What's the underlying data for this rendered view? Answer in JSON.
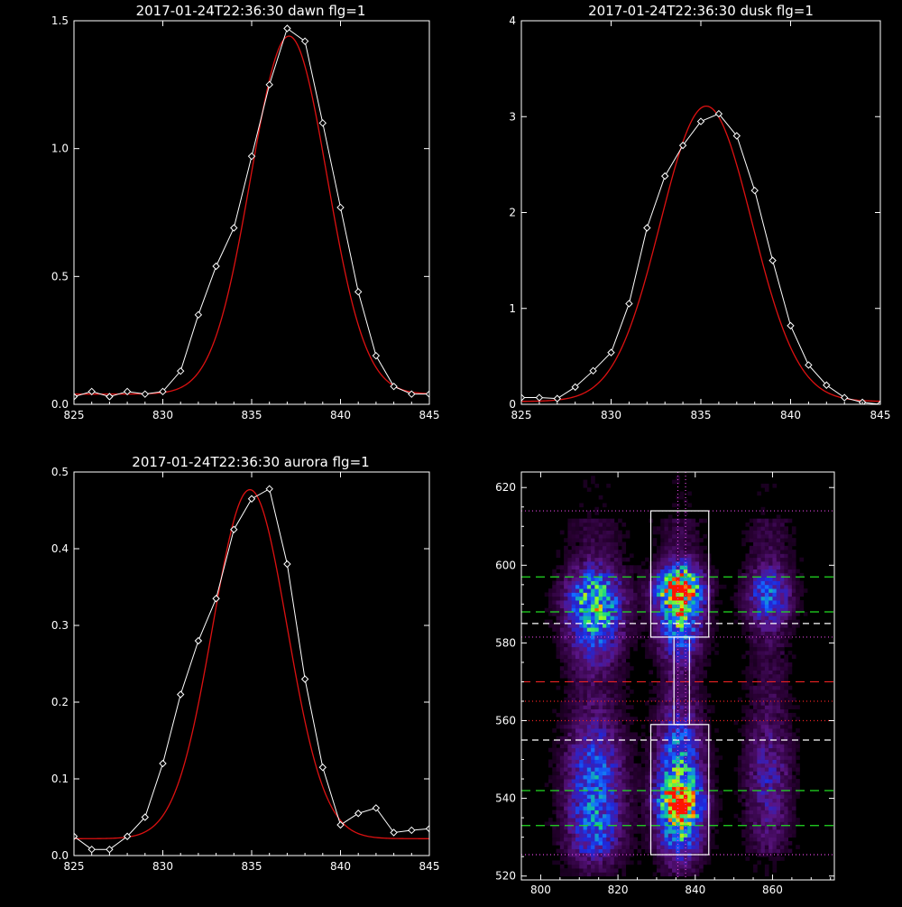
{
  "colors": {
    "background": "#000000",
    "axes": "#ffffff",
    "data_line": "#ffffff",
    "fit_line": "#dd1111",
    "guide_green": "#22dd22",
    "guide_white": "#ffffff",
    "guide_red": "#ee2222",
    "guide_magenta": "#dd44dd"
  },
  "chart_data": [
    {
      "type": "line",
      "title": "2017-01-24T22:36:30 dawn flg=1",
      "xlim": [
        825,
        845
      ],
      "ylim": [
        0,
        1.5
      ],
      "xticks": [
        825,
        830,
        835,
        840,
        845
      ],
      "yticks": [
        0.0,
        0.5,
        1.0,
        1.5
      ],
      "ytick_labels": [
        "0.0",
        "0.5",
        "1.0",
        "1.5"
      ],
      "series": [
        {
          "style": "white-line-diamonds",
          "x": [
            825,
            826,
            827,
            828,
            829,
            830,
            831,
            832,
            833,
            834,
            835,
            836,
            837,
            838,
            839,
            840,
            841,
            842,
            843,
            844,
            845
          ],
          "y": [
            0.03,
            0.05,
            0.03,
            0.05,
            0.04,
            0.05,
            0.13,
            0.35,
            0.54,
            0.69,
            0.97,
            1.25,
            1.47,
            1.42,
            1.1,
            0.77,
            0.44,
            0.19,
            0.07,
            0.04,
            0.04
          ]
        },
        {
          "style": "red-gaussian-fit",
          "gaussian": {
            "amplitude": 1.4,
            "center": 837.1,
            "sigma": 2.15,
            "offset": 0.04
          }
        }
      ]
    },
    {
      "type": "line",
      "title": "2017-01-24T22:36:30 dusk flg=1",
      "xlim": [
        825,
        845
      ],
      "ylim": [
        0,
        4
      ],
      "xticks": [
        825,
        830,
        835,
        840,
        845
      ],
      "yticks": [
        0,
        1,
        2,
        3,
        4
      ],
      "ytick_labels": [
        "0",
        "1",
        "2",
        "3",
        "4"
      ],
      "series": [
        {
          "style": "white-line-diamonds",
          "x": [
            825,
            826,
            827,
            828,
            829,
            830,
            831,
            832,
            833,
            834,
            835,
            836,
            837,
            838,
            839,
            840,
            841,
            842,
            843,
            844,
            845
          ],
          "y": [
            0.07,
            0.07,
            0.06,
            0.18,
            0.35,
            0.54,
            1.05,
            1.84,
            2.38,
            2.7,
            2.95,
            3.03,
            2.8,
            2.23,
            1.5,
            0.82,
            0.41,
            0.2,
            0.07,
            0.02,
            0.0
          ]
        },
        {
          "style": "red-gaussian-fit",
          "gaussian": {
            "amplitude": 3.08,
            "center": 835.3,
            "sigma": 2.55,
            "offset": 0.03
          }
        }
      ]
    },
    {
      "type": "line",
      "title": "2017-01-24T22:36:30 aurora flg=1",
      "xlim": [
        825,
        845
      ],
      "ylim": [
        0,
        0.5
      ],
      "xticks": [
        825,
        830,
        835,
        840,
        845
      ],
      "yticks": [
        0.0,
        0.1,
        0.2,
        0.3,
        0.4,
        0.5
      ],
      "ytick_labels": [
        "0.0",
        "0.1",
        "0.2",
        "0.3",
        "0.4",
        "0.5"
      ],
      "series": [
        {
          "style": "white-line-diamonds",
          "x": [
            825,
            826,
            827,
            828,
            829,
            830,
            831,
            832,
            833,
            834,
            835,
            836,
            837,
            838,
            839,
            840,
            841,
            842,
            843,
            844,
            845
          ],
          "y": [
            0.025,
            0.008,
            0.008,
            0.025,
            0.05,
            0.12,
            0.21,
            0.28,
            0.335,
            0.425,
            0.465,
            0.478,
            0.38,
            0.23,
            0.115,
            0.04,
            0.055,
            0.062,
            0.03,
            0.033,
            0.035
          ]
        },
        {
          "style": "red-gaussian-fit",
          "gaussian": {
            "amplitude": 0.455,
            "center": 834.9,
            "sigma": 2.1,
            "offset": 0.022
          }
        }
      ]
    },
    {
      "type": "heatmap",
      "title": "",
      "xlim": [
        795,
        876
      ],
      "ylim": [
        519,
        624
      ],
      "xticks": [
        800,
        820,
        840,
        860
      ],
      "yticks": [
        520,
        540,
        560,
        580,
        600,
        620
      ],
      "colormap": "black-purple-blue-green-yellow-red",
      "columns": [
        {
          "center": 814,
          "width": 5,
          "blobs": [
            {
              "y": 592,
              "sy": 5,
              "peak": 0.55
            },
            {
              "y": 583,
              "sy": 6,
              "peak": 0.35
            },
            {
              "y": 545,
              "sy": 10,
              "peak": 0.4
            },
            {
              "y": 530,
              "sy": 6,
              "peak": 0.25
            }
          ]
        },
        {
          "center": 836,
          "width": 4,
          "blobs": [
            {
              "y": 594,
              "sy": 4,
              "peak": 1.0
            },
            {
              "y": 585,
              "sy": 6,
              "peak": 0.5
            },
            {
              "y": 548,
              "sy": 10,
              "peak": 0.5
            },
            {
              "y": 539,
              "sy": 4,
              "peak": 0.7
            },
            {
              "y": 530,
              "sy": 6,
              "peak": 0.35
            }
          ]
        },
        {
          "center": 859,
          "width": 4,
          "blobs": [
            {
              "y": 592,
              "sy": 5,
              "peak": 0.4
            },
            {
              "y": 545,
              "sy": 10,
              "peak": 0.2
            }
          ]
        }
      ],
      "rectangles": [
        {
          "x": [
            828.5,
            843.5
          ],
          "y": [
            581.5,
            614
          ]
        },
        {
          "x": [
            828.5,
            843.5
          ],
          "y": [
            525.5,
            559
          ]
        },
        {
          "x": [
            834.5,
            838.5
          ],
          "y": [
            559,
            581.5
          ]
        }
      ],
      "hlines": [
        {
          "y": 614,
          "style": "magenta-dotted"
        },
        {
          "y": 597,
          "style": "green-dashed"
        },
        {
          "y": 588,
          "style": "green-dashed"
        },
        {
          "y": 585,
          "style": "white-dashed"
        },
        {
          "y": 581.5,
          "style": "magenta-dotted"
        },
        {
          "y": 570,
          "style": "red-dashed"
        },
        {
          "y": 565,
          "style": "red-dotted"
        },
        {
          "y": 560,
          "style": "red-dotted"
        },
        {
          "y": 555,
          "style": "white-dashed"
        },
        {
          "y": 542,
          "style": "green-dashed"
        },
        {
          "y": 533,
          "style": "green-dashed"
        },
        {
          "y": 525.5,
          "style": "magenta-dotted"
        }
      ],
      "vlines": [
        {
          "x": 835.5,
          "style": "magenta-dotted"
        },
        {
          "x": 837.5,
          "style": "magenta-dotted"
        }
      ]
    }
  ]
}
